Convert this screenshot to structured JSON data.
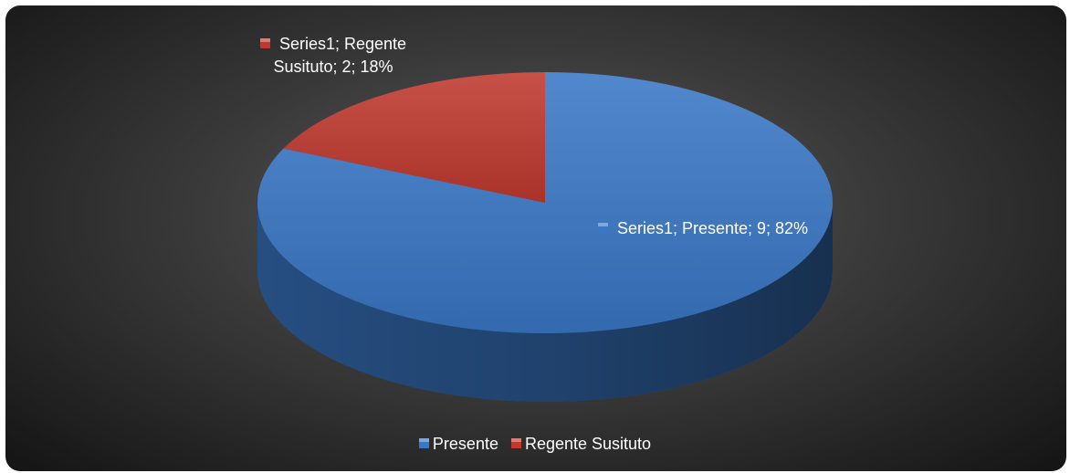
{
  "chart_data": {
    "type": "pie",
    "categories": [
      "Presente",
      "Regente Susituto"
    ],
    "values": [
      9,
      2
    ],
    "value_labels": [
      "Series1; Presente; 9; 82%",
      "Series1; Regente Susituto; 2; 18%"
    ],
    "colors": [
      "#3a78c6",
      "#c0392f"
    ],
    "legend": "bottom"
  }
}
